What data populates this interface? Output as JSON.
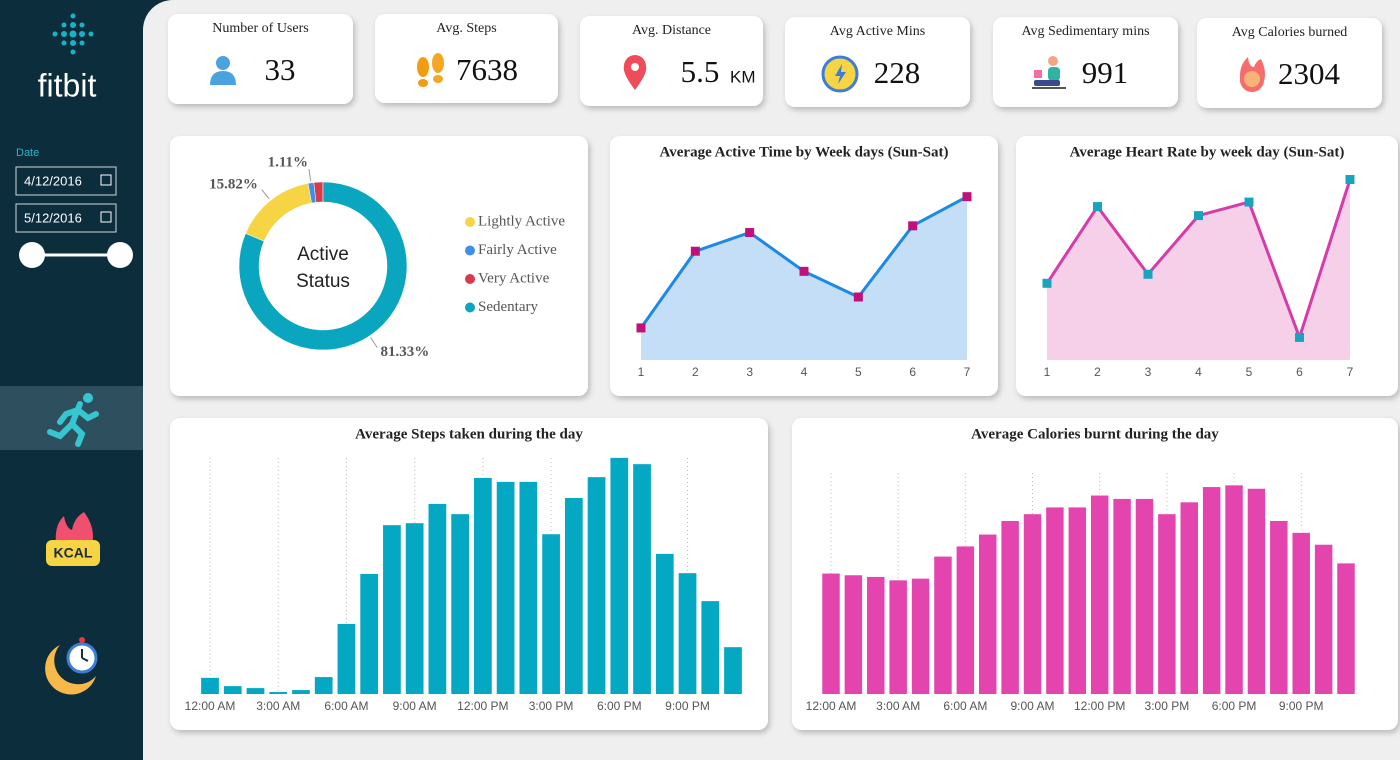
{
  "sidebar": {
    "logo": "fitbit",
    "date_label": "Date",
    "start_date": "4/12/2016",
    "end_date": "5/12/2016",
    "kcal_badge": "KCAL"
  },
  "kpis": [
    {
      "label": "Number of Users",
      "value": 33
    },
    {
      "label": "Avg. Steps",
      "value": 7638
    },
    {
      "label": "Avg. Distance",
      "value": 5.5,
      "unit": "KM"
    },
    {
      "label": "Avg Active Mins",
      "value": 228
    },
    {
      "label": "Avg Sedimentary mins",
      "value": 991
    },
    {
      "label": "Avg Calories burned",
      "value": 2304
    }
  ],
  "chart_data": [
    {
      "type": "donut",
      "center_label": [
        "Active",
        "Status"
      ],
      "categories": [
        "Lightly Active",
        "Fairly Active",
        "Very Active",
        "Sedentary"
      ],
      "values": [
        15.82,
        1.11,
        1.74,
        81.33
      ],
      "value_labels": [
        "15.82%",
        "1.11%",
        null,
        "81.33%"
      ],
      "colors": [
        "#f7d443",
        "#3f8fe8",
        "#d83b4e",
        "#0aa6c0"
      ]
    },
    {
      "type": "area",
      "title": "Average Active Time by Week days (Sun-Sat)",
      "x": [
        1,
        2,
        3,
        4,
        5,
        6,
        7
      ],
      "values": [
        207,
        233.3,
        239.7,
        226.4,
        217.6,
        242,
        252
      ],
      "xlim": [
        1,
        7
      ],
      "xticks": [
        1,
        2,
        3,
        4,
        5,
        6,
        7
      ],
      "ylim": [
        196,
        256
      ],
      "color": "#1e88e5",
      "fill": "#c5def8",
      "marker_color": "#c0117a"
    },
    {
      "type": "area",
      "title": "Average Heart Rate by week day (Sun-Sat)",
      "x": [
        1,
        2,
        3,
        4,
        5,
        6,
        7
      ],
      "values": [
        78.2,
        79.9,
        78.4,
        79.7,
        80,
        77,
        80.5
      ],
      "xlim": [
        1,
        7
      ],
      "xticks": [
        1,
        2,
        3,
        4,
        5,
        6,
        7
      ],
      "ylim": [
        76.5,
        80.6
      ],
      "color": "#d63ca8",
      "fill": "#f5d0e8",
      "marker_color": "#19a4bd"
    },
    {
      "type": "bar",
      "title": "Average Steps taken during the day",
      "categories": [
        "12:00 AM",
        null,
        null,
        "3:00 AM",
        null,
        null,
        "6:00 AM",
        null,
        null,
        "9:00 AM",
        null,
        null,
        "12:00 PM",
        null,
        null,
        "3:00 PM",
        null,
        null,
        "6:00 PM",
        null,
        null,
        "9:00 PM",
        null,
        null
      ],
      "values": [
        41,
        20,
        15,
        5,
        10,
        43,
        178,
        305,
        429,
        434,
        483,
        457,
        549,
        539,
        539,
        406,
        498,
        551,
        600,
        584,
        356,
        307,
        236,
        119
      ],
      "ylim": [
        0,
        620
      ],
      "color": "#05a8c2",
      "grid": true
    },
    {
      "type": "bar",
      "title": "Average Calories burnt during the day",
      "categories": [
        "12:00 AM",
        null,
        null,
        "3:00 AM",
        null,
        null,
        "6:00 AM",
        null,
        null,
        "9:00 AM",
        null,
        null,
        "12:00 PM",
        null,
        null,
        "3:00 PM",
        null,
        null,
        "6:00 PM",
        null,
        null,
        "9:00 PM",
        null,
        null
      ],
      "values": [
        71,
        70,
        69,
        67,
        68,
        81,
        87,
        94,
        102,
        106,
        110,
        110,
        117,
        115,
        115,
        106,
        113,
        122,
        123,
        121,
        102,
        95,
        88,
        77
      ],
      "ylim": [
        0,
        135
      ],
      "color": "#e344ad",
      "grid": true
    }
  ]
}
